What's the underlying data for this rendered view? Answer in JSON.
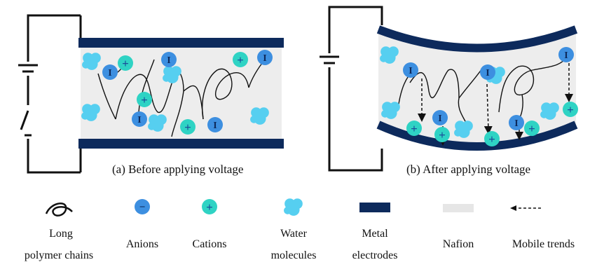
{
  "panels": {
    "before": {
      "caption": "(a) Before applying voltage"
    },
    "after": {
      "caption": "(b) After applying voltage"
    }
  },
  "legend": {
    "polymer": {
      "line1": "Long",
      "line2": "polymer chains",
      "icon": "polymer-chain-icon"
    },
    "anions": {
      "label": "Anions",
      "symbol": "−",
      "icon": "anion-icon"
    },
    "cations": {
      "label": "Cations",
      "symbol": "+",
      "icon": "cation-icon"
    },
    "water": {
      "line1": "Water",
      "line2": "molecules",
      "icon": "water-molecule-icon"
    },
    "electrodes": {
      "line1": "Metal",
      "line2": "electrodes",
      "icon": "metal-electrode-icon"
    },
    "nafion": {
      "label": "Nafion",
      "icon": "nafion-icon"
    },
    "mobile": {
      "label": "Mobile trends",
      "icon": "mobile-trend-arrow-icon"
    }
  },
  "symbols": {
    "anion_in_panel": "I",
    "cation_in_panel": "+"
  },
  "colors": {
    "electrode": "#0d2a5c",
    "nafion": "#ededed",
    "anion": "#3d8fe0",
    "cation": "#2fd3c4",
    "cation_sign": "#1b4f9a",
    "water": "#56cff0",
    "wire": "#111111"
  }
}
